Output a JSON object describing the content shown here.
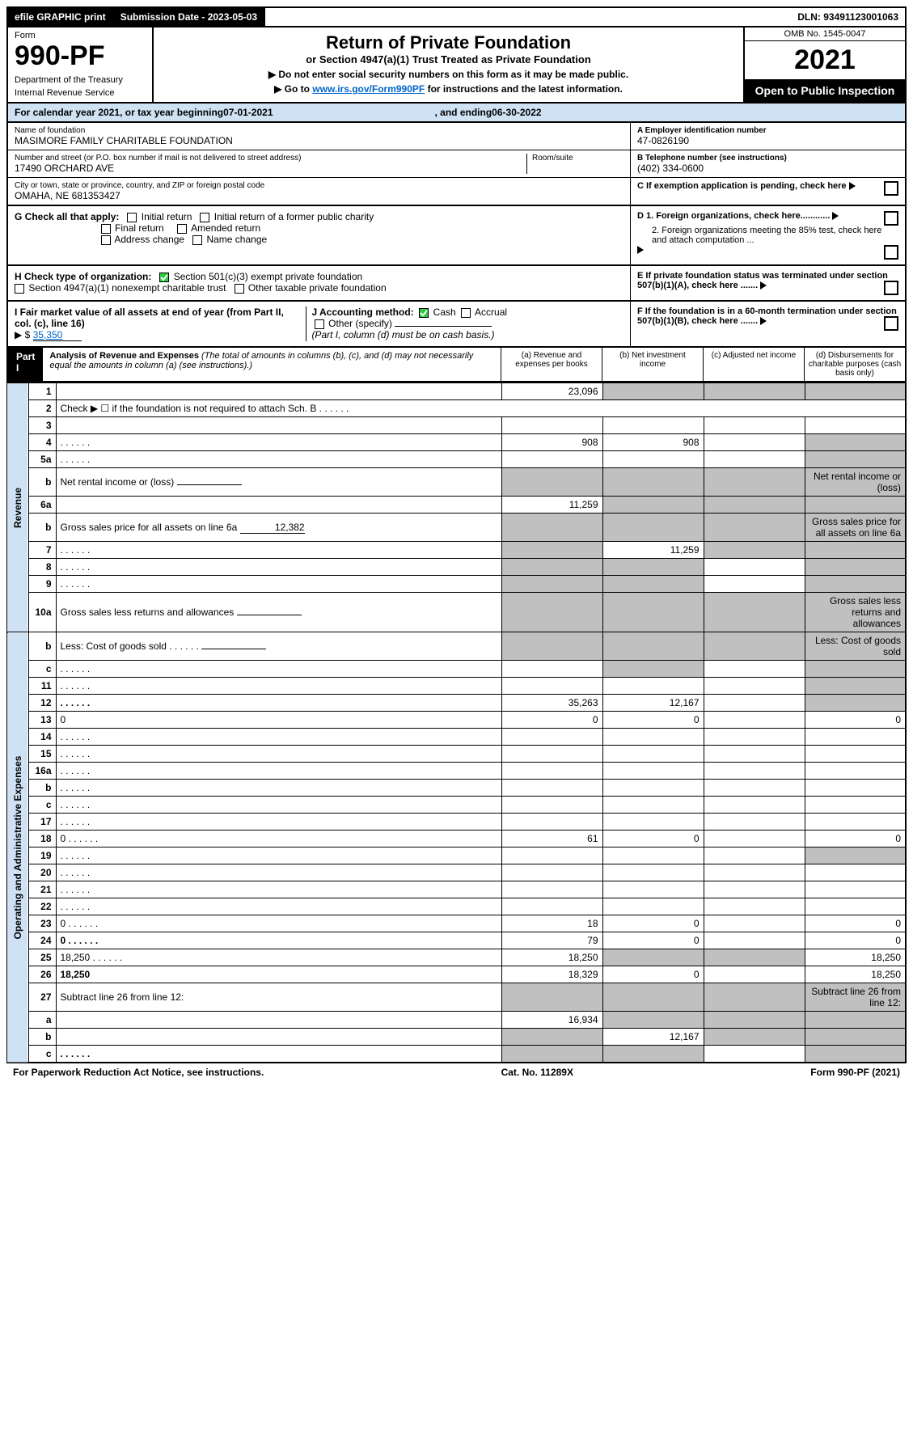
{
  "top": {
    "efile": "efile GRAPHIC print",
    "submission_label": "Submission Date - 2023-05-03",
    "dln": "DLN: 93491123001063"
  },
  "header": {
    "form_label": "Form",
    "form_number": "990-PF",
    "dept": "Department of the Treasury",
    "irs": "Internal Revenue Service",
    "title": "Return of Private Foundation",
    "subtitle1": "or Section 4947(a)(1) Trust Treated as Private Foundation",
    "subtitle2a": "▶ Do not enter social security numbers on this form as it may be made public.",
    "subtitle2b": "▶ Go to ",
    "subtitle2_link": "www.irs.gov/Form990PF",
    "subtitle2c": " for instructions and the latest information.",
    "omb": "OMB No. 1545-0047",
    "year": "2021",
    "open": "Open to Public Inspection"
  },
  "calendar": {
    "prefix": "For calendar year 2021, or tax year beginning ",
    "begin": "07-01-2021",
    "mid": ", and ending ",
    "end": "06-30-2022"
  },
  "foundation": {
    "name_label": "Name of foundation",
    "name": "MASIMORE FAMILY CHARITABLE FOUNDATION",
    "addr_label": "Number and street (or P.O. box number if mail is not delivered to street address)",
    "addr": "17490 ORCHARD AVE",
    "room_label": "Room/suite",
    "room": "",
    "city_label": "City or town, state or province, country, and ZIP or foreign postal code",
    "city": "OMAHA, NE  681353427",
    "ein_label": "A Employer identification number",
    "ein": "47-0826190",
    "phone_label": "B Telephone number (see instructions)",
    "phone": "(402) 334-0600",
    "c_label": "C If exemption application is pending, check here"
  },
  "checks": {
    "g_label": "G Check all that apply:",
    "initial": "Initial return",
    "initial_former": "Initial return of a former public charity",
    "final": "Final return",
    "amended": "Amended return",
    "address": "Address change",
    "name_change": "Name change",
    "h_label": "H Check type of organization:",
    "h_501c3": "Section 501(c)(3) exempt private foundation",
    "h_4947": "Section 4947(a)(1) nonexempt charitable trust",
    "h_other": "Other taxable private foundation",
    "i_label1": "I Fair market value of all assets at end of year (from Part II, col. (c), line 16)",
    "i_arrow": "▶ $",
    "i_value": "35,350",
    "j_label": "J Accounting method:",
    "j_cash": "Cash",
    "j_accrual": "Accrual",
    "j_other": "Other (specify)",
    "j_note": "(Part I, column (d) must be on cash basis.)",
    "d1": "D 1. Foreign organizations, check here............",
    "d2": "2. Foreign organizations meeting the 85% test, check here and attach computation ...",
    "e": "E  If private foundation status was terminated under section 507(b)(1)(A), check here .......",
    "f": "F  If the foundation is in a 60-month termination under section 507(b)(1)(B), check here .......",
    "arrow": "▶"
  },
  "part1": {
    "label": "Part I",
    "title": "Analysis of Revenue and Expenses",
    "title_note": "(The total of amounts in columns (b), (c), and (d) may not necessarily equal the amounts in column (a) (see instructions).)",
    "col_a": "(a)   Revenue and expenses per books",
    "col_b": "(b)   Net investment income",
    "col_c": "(c)   Adjusted net income",
    "col_d": "(d)   Disbursements for charitable purposes (cash basis only)"
  },
  "side": {
    "revenue": "Revenue",
    "opex": "Operating and Administrative Expenses"
  },
  "rows": [
    {
      "n": "1",
      "d": "",
      "a": "23,096",
      "b": "",
      "c": "",
      "grey": [
        "b",
        "c",
        "d"
      ]
    },
    {
      "n": "2",
      "d": "Check ▶ ☐ if the foundation is not required to attach Sch. B",
      "dots": true,
      "nocols": true
    },
    {
      "n": "3",
      "d": "",
      "a": "",
      "b": "",
      "c": ""
    },
    {
      "n": "4",
      "d": "",
      "dots": true,
      "a": "908",
      "b": "908",
      "c": "",
      "grey": [
        "d"
      ]
    },
    {
      "n": "5a",
      "d": "",
      "dots": true,
      "a": "",
      "b": "",
      "c": "",
      "grey": [
        "d"
      ]
    },
    {
      "n": "b",
      "d": "Net rental income or (loss)",
      "inline": true,
      "grey": [
        "a",
        "b",
        "c",
        "d"
      ]
    },
    {
      "n": "6a",
      "d": "",
      "a": "11,259",
      "b": "",
      "c": "",
      "grey": [
        "b",
        "c",
        "d"
      ]
    },
    {
      "n": "b",
      "d": "Gross sales price for all assets on line 6a",
      "inline": true,
      "inline_val": "12,382",
      "grey": [
        "a",
        "b",
        "c",
        "d"
      ]
    },
    {
      "n": "7",
      "d": "",
      "dots": true,
      "a": "",
      "b": "11,259",
      "c": "",
      "grey": [
        "a",
        "c",
        "d"
      ]
    },
    {
      "n": "8",
      "d": "",
      "dots": true,
      "a": "",
      "b": "",
      "c": "",
      "grey": [
        "a",
        "b",
        "d"
      ]
    },
    {
      "n": "9",
      "d": "",
      "dots": true,
      "a": "",
      "b": "",
      "c": "",
      "grey": [
        "a",
        "b",
        "d"
      ]
    },
    {
      "n": "10a",
      "d": "Gross sales less returns and allowances",
      "inline": true,
      "grey": [
        "a",
        "b",
        "c",
        "d"
      ]
    },
    {
      "n": "b",
      "d": "Less: Cost of goods sold",
      "dots": true,
      "inline": true,
      "grey": [
        "a",
        "b",
        "c",
        "d"
      ]
    },
    {
      "n": "c",
      "d": "",
      "dots": true,
      "a": "",
      "b": "",
      "c": "",
      "grey": [
        "b",
        "d"
      ]
    },
    {
      "n": "11",
      "d": "",
      "dots": true,
      "a": "",
      "b": "",
      "c": "",
      "grey": [
        "d"
      ]
    },
    {
      "n": "12",
      "d": "",
      "dots": true,
      "bold": true,
      "a": "35,263",
      "b": "12,167",
      "c": "",
      "grey": [
        "d"
      ]
    },
    {
      "n": "13",
      "d": "0",
      "a": "0",
      "b": "0",
      "c": ""
    },
    {
      "n": "14",
      "d": "",
      "dots": true,
      "a": "",
      "b": "",
      "c": ""
    },
    {
      "n": "15",
      "d": "",
      "dots": true,
      "a": "",
      "b": "",
      "c": ""
    },
    {
      "n": "16a",
      "d": "",
      "dots": true,
      "a": "",
      "b": "",
      "c": ""
    },
    {
      "n": "b",
      "d": "",
      "dots": true,
      "a": "",
      "b": "",
      "c": ""
    },
    {
      "n": "c",
      "d": "",
      "dots": true,
      "a": "",
      "b": "",
      "c": ""
    },
    {
      "n": "17",
      "d": "",
      "dots": true,
      "a": "",
      "b": "",
      "c": ""
    },
    {
      "n": "18",
      "d": "0",
      "dots": true,
      "a": "61",
      "b": "0",
      "c": ""
    },
    {
      "n": "19",
      "d": "",
      "dots": true,
      "a": "",
      "b": "",
      "c": "",
      "grey": [
        "d"
      ]
    },
    {
      "n": "20",
      "d": "",
      "dots": true,
      "a": "",
      "b": "",
      "c": ""
    },
    {
      "n": "21",
      "d": "",
      "dots": true,
      "a": "",
      "b": "",
      "c": ""
    },
    {
      "n": "22",
      "d": "",
      "dots": true,
      "a": "",
      "b": "",
      "c": ""
    },
    {
      "n": "23",
      "d": "0",
      "dots": true,
      "a": "18",
      "b": "0",
      "c": ""
    },
    {
      "n": "24",
      "d": "0",
      "dots": true,
      "bold": true,
      "a": "79",
      "b": "0",
      "c": ""
    },
    {
      "n": "25",
      "d": "18,250",
      "dots": true,
      "a": "18,250",
      "b": "",
      "c": "",
      "grey": [
        "b",
        "c"
      ]
    },
    {
      "n": "26",
      "d": "18,250",
      "bold": true,
      "a": "18,329",
      "b": "0",
      "c": ""
    },
    {
      "n": "27",
      "d": "Subtract line 26 from line 12:",
      "grey": [
        "a",
        "b",
        "c",
        "d"
      ]
    },
    {
      "n": "a",
      "d": "",
      "bold": true,
      "a": "16,934",
      "b": "",
      "c": "",
      "grey": [
        "b",
        "c",
        "d"
      ]
    },
    {
      "n": "b",
      "d": "",
      "bold": true,
      "a": "",
      "b": "12,167",
      "c": "",
      "grey": [
        "a",
        "c",
        "d"
      ]
    },
    {
      "n": "c",
      "d": "",
      "dots": true,
      "bold": true,
      "a": "",
      "b": "",
      "c": "",
      "grey": [
        "a",
        "b",
        "d"
      ]
    }
  ],
  "footer": {
    "left": "For Paperwork Reduction Act Notice, see instructions.",
    "mid": "Cat. No. 11289X",
    "right": "Form 990-PF (2021)"
  },
  "colors": {
    "blue_bg": "#cfe2f3",
    "grey_bg": "#c0c0c0",
    "link": "#0066cc"
  }
}
